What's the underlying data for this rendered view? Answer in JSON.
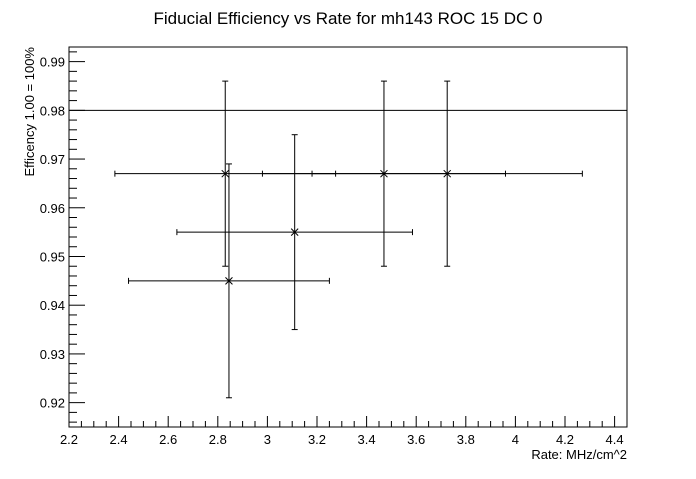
{
  "chart_data": {
    "type": "scatter",
    "title": "Fiducial Efficiency vs Rate for mh143 ROC 15 DC 0",
    "xlabel": "Rate: MHz/cm^2",
    "ylabel": "Efficency 1.00 = 100%",
    "xlim": [
      2.2,
      4.45
    ],
    "ylim": [
      0.915,
      0.993
    ],
    "xticks": [
      2.2,
      2.4,
      2.6,
      2.8,
      3.0,
      3.2,
      3.4,
      3.6,
      3.8,
      4.0,
      4.2,
      4.4
    ],
    "xtick_labels": [
      "2.2",
      "2.4",
      "2.6",
      "2.8",
      "3",
      "3.2",
      "3.4",
      "3.6",
      "3.8",
      "4",
      "4.2",
      "4.4"
    ],
    "yticks": [
      0.92,
      0.93,
      0.94,
      0.95,
      0.96,
      0.97,
      0.98,
      0.99
    ],
    "ytick_labels": [
      "0.92",
      "0.93",
      "0.94",
      "0.95",
      "0.96",
      "0.97",
      "0.98",
      "0.99"
    ],
    "reference_line_y": 0.98,
    "grid": false,
    "points": [
      {
        "x": 2.83,
        "y": 0.967,
        "xerr": 0.445,
        "yerr": 0.019
      },
      {
        "x": 2.845,
        "y": 0.945,
        "xerr": 0.405,
        "yerr": 0.024
      },
      {
        "x": 3.11,
        "y": 0.955,
        "xerr": 0.475,
        "yerr": 0.02
      },
      {
        "x": 3.47,
        "y": 0.967,
        "xerr": 0.49,
        "yerr": 0.019
      },
      {
        "x": 3.725,
        "y": 0.967,
        "xerr": 0.545,
        "yerr": 0.019
      }
    ]
  },
  "colors": {
    "line": "#000000",
    "background": "#ffffff"
  }
}
